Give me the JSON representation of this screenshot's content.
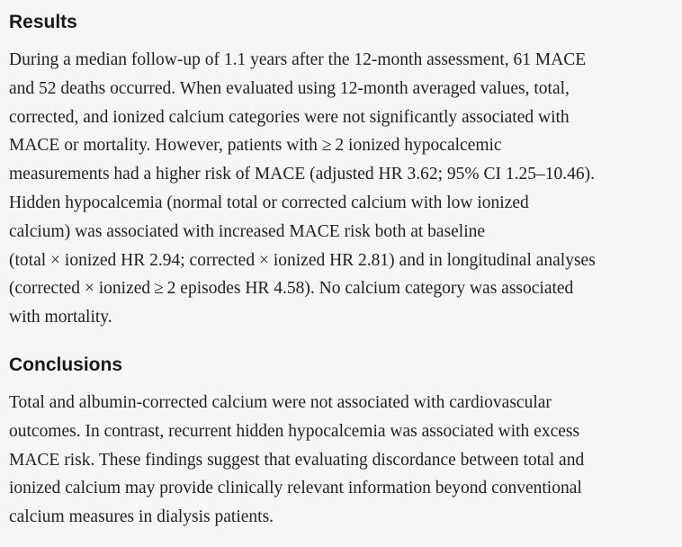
{
  "results": {
    "heading": "Results",
    "lines": [
      "During a median follow-up of 1.1 years after the 12-month assessment, 61 MACE",
      "and 52 deaths occurred. When evaluated using 12-month averaged values, total,",
      "corrected, and ionized calcium categories were not significantly associated with",
      "MACE or mortality. However, patients with ≥ 2 ionized hypocalcemic",
      "measurements had a higher risk of MACE (adjusted HR 3.62; 95% CI 1.25–10.46).",
      "Hidden hypocalcemia (normal total or corrected calcium with low ionized",
      "calcium) was associated with increased MACE risk both at baseline",
      "(total × ionized HR 2.94; corrected × ionized HR 2.81) and in longitudinal analyses",
      "(corrected × ionized ≥ 2 episodes HR 4.58). No calcium category was associated",
      "with mortality."
    ]
  },
  "conclusions": {
    "heading": "Conclusions",
    "lines": [
      "Total and albumin-corrected calcium were not associated with cardiovascular",
      "outcomes. In contrast, recurrent hidden hypocalcemia was associated with excess",
      "MACE risk. These findings suggest that evaluating discordance between total and",
      "ionized calcium may provide clinically relevant information beyond conventional",
      "calcium measures in dialysis patients."
    ]
  }
}
